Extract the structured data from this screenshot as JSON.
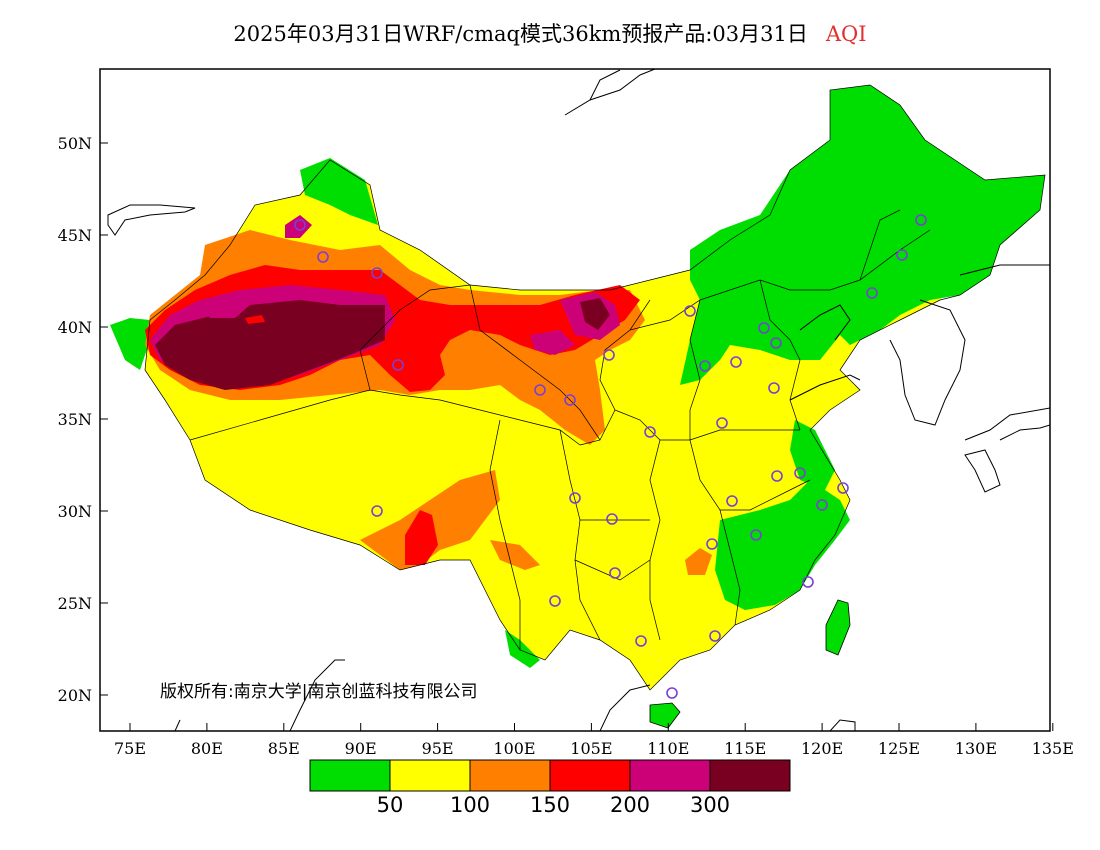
{
  "title": {
    "main": "2025年03月31日WRF/cmaq模式36km预报产品:03月31日",
    "pollutant": "AQI"
  },
  "axes": {
    "lat_labels": [
      "50N",
      "45N",
      "40N",
      "35N",
      "30N",
      "25N",
      "20N"
    ],
    "lon_labels": [
      "75E",
      "80E",
      "85E",
      "90E",
      "95E",
      "100E",
      "105E",
      "110E",
      "115E",
      "120E",
      "125E",
      "130E",
      "135E"
    ]
  },
  "copyright": "版权所有:南京大学|南京创蓝科技有限公司",
  "legend": {
    "breaks": [
      "50",
      "100",
      "150",
      "200",
      "300"
    ],
    "colors": [
      "#00dd00",
      "#ffff00",
      "#ff8000",
      "#ff0000",
      "#cc0077",
      "#7a0022"
    ]
  },
  "map_colors": {
    "good": "#00dd00",
    "moderate": "#ffff00",
    "unhealthy_sensitive": "#ff8000",
    "unhealthy": "#ff0000",
    "very_unhealthy": "#cc0077",
    "hazardous": "#7a0022",
    "station": "#7b3fd6"
  }
}
